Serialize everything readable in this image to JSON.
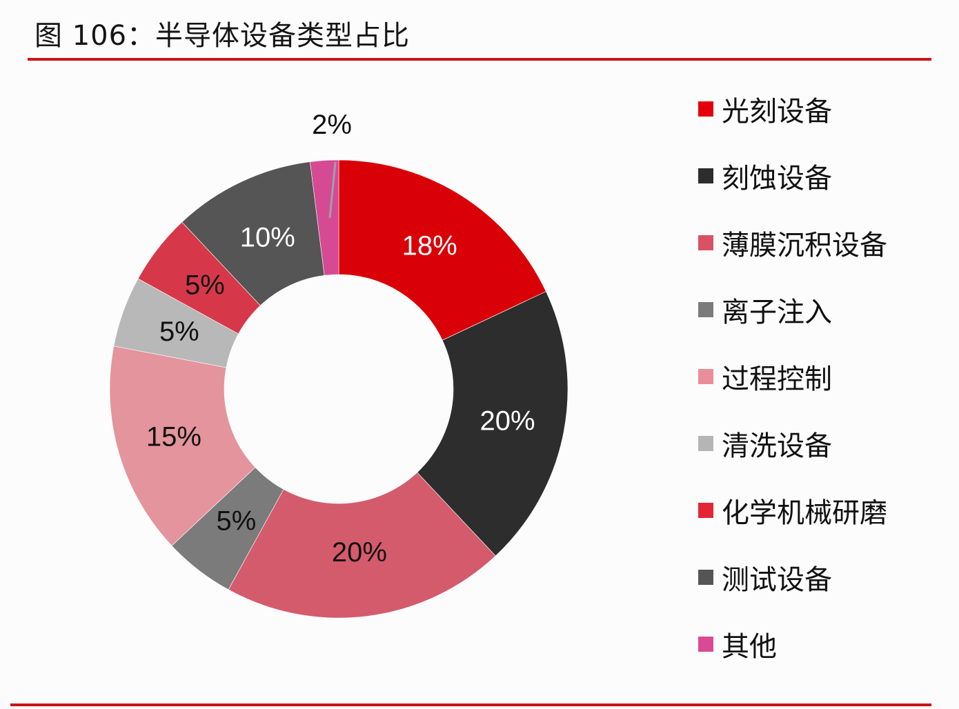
{
  "header": {
    "title": "图 106：半导体设备类型占比"
  },
  "colors": {
    "rule": "#cc1417",
    "leader_line": "#9aa3a6"
  },
  "chart_data": {
    "type": "pie",
    "subtype": "donut",
    "title": "图 106：半导体设备类型占比",
    "categories": [
      "光刻设备",
      "刻蚀设备",
      "薄膜沉积设备",
      "离子注入",
      "过程控制",
      "清洗设备",
      "化学机械研磨",
      "测试设备",
      "其他"
    ],
    "values": [
      18,
      20,
      20,
      5,
      15,
      5,
      5,
      10,
      2
    ],
    "labels": [
      "18%",
      "20%",
      "20%",
      "5%",
      "15%",
      "5%",
      "5%",
      "10%",
      "2%"
    ],
    "colors": [
      "#d90007",
      "#2e2d2d",
      "#d45b6c",
      "#7b7b7b",
      "#e4949c",
      "#b8b8b8",
      "#d6384a",
      "#555555",
      "#d64a94"
    ],
    "label_colors": [
      "#ffffff",
      "#ffffff",
      "#111111",
      "#111111",
      "#111111",
      "#111111",
      "#111111",
      "#ffffff",
      "#111111"
    ],
    "unit": "%",
    "start_angle": "12 o'clock",
    "direction": "clockwise",
    "legend_position": "right"
  },
  "legend": {
    "items": [
      {
        "label": "光刻设备",
        "color": "#e3000b"
      },
      {
        "label": "刻蚀设备",
        "color": "#2e2d2d"
      },
      {
        "label": "薄膜沉积设备",
        "color": "#d85263"
      },
      {
        "label": "离子注入",
        "color": "#7b7b7b"
      },
      {
        "label": "过程控制",
        "color": "#e98e98"
      },
      {
        "label": "清洗设备",
        "color": "#b5b5b5"
      },
      {
        "label": "化学机械研磨",
        "color": "#e32536"
      },
      {
        "label": "测试设备",
        "color": "#555555"
      },
      {
        "label": "其他",
        "color": "#da4a94"
      }
    ]
  }
}
